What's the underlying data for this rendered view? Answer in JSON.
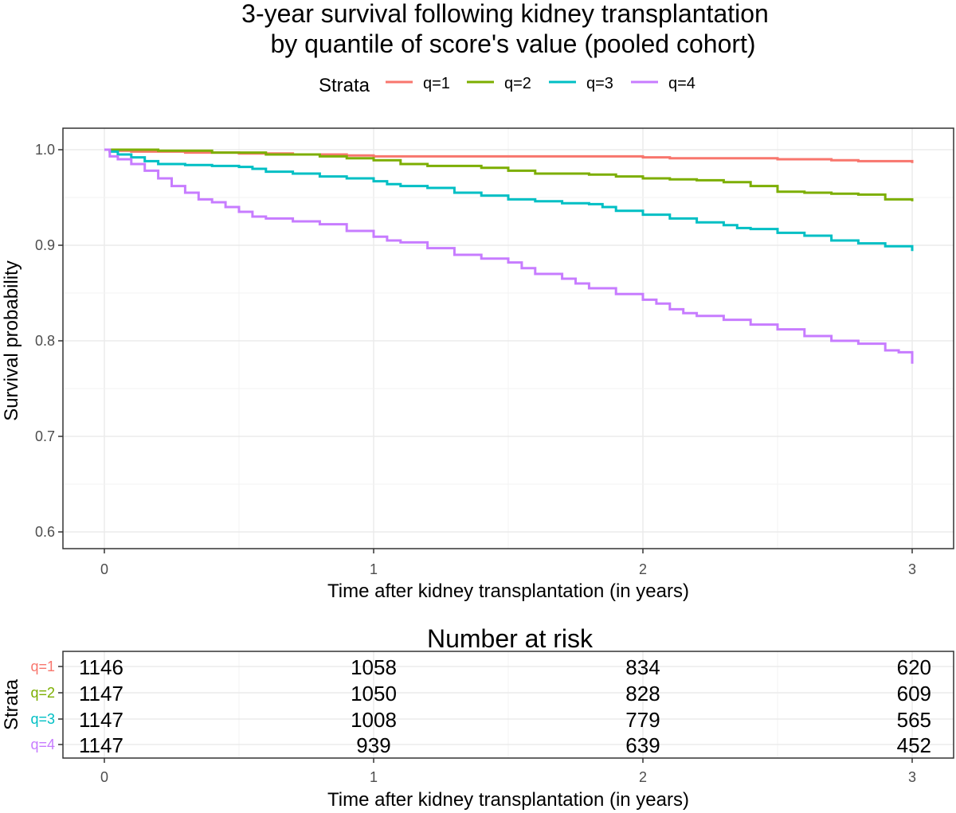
{
  "chart_data": [
    {
      "type": "line",
      "title": "3-year survival following kidney transplantation",
      "subtitle": "by quantile of score's value (pooled cohort)",
      "legend_title": "Strata",
      "legend_position": "top",
      "xlabel": "Time after kidney transplantation (in years)",
      "ylabel": "Survival probability",
      "xlim": [
        0,
        3
      ],
      "ylim": [
        0.58,
        1.02
      ],
      "x_ticks": [
        "0",
        "1",
        "2",
        "3"
      ],
      "y_ticks": [
        "0.6",
        "0.7",
        "0.8",
        "0.9",
        "1.0"
      ],
      "grid": true,
      "step": true,
      "series": [
        {
          "name": "q=1",
          "color": "#F8766D",
          "x": [
            0,
            0.02,
            0.1,
            0.3,
            0.5,
            0.7,
            0.9,
            1.0,
            1.3,
            1.6,
            2.0,
            2.1,
            2.3,
            2.5,
            2.7,
            2.8,
            3.0
          ],
          "y": [
            1.0,
            0.999,
            0.998,
            0.997,
            0.996,
            0.995,
            0.994,
            0.993,
            0.993,
            0.993,
            0.992,
            0.991,
            0.991,
            0.99,
            0.989,
            0.988,
            0.986
          ]
        },
        {
          "name": "q=2",
          "color": "#7CAE00",
          "x": [
            0,
            0.05,
            0.2,
            0.4,
            0.6,
            0.8,
            0.9,
            1.0,
            1.1,
            1.2,
            1.4,
            1.5,
            1.6,
            1.7,
            1.8,
            1.9,
            2.0,
            2.1,
            2.2,
            2.3,
            2.4,
            2.5,
            2.6,
            2.7,
            2.8,
            2.9,
            3.0
          ],
          "y": [
            1.0,
            1.0,
            0.999,
            0.997,
            0.995,
            0.993,
            0.991,
            0.989,
            0.985,
            0.983,
            0.981,
            0.978,
            0.975,
            0.975,
            0.974,
            0.972,
            0.97,
            0.969,
            0.968,
            0.966,
            0.962,
            0.956,
            0.955,
            0.954,
            0.953,
            0.948,
            0.946
          ]
        },
        {
          "name": "q=3",
          "color": "#00BFC4",
          "x": [
            0,
            0.02,
            0.05,
            0.1,
            0.15,
            0.2,
            0.3,
            0.4,
            0.5,
            0.55,
            0.6,
            0.7,
            0.8,
            0.9,
            1.0,
            1.05,
            1.1,
            1.2,
            1.3,
            1.4,
            1.5,
            1.6,
            1.7,
            1.8,
            1.85,
            1.9,
            2.0,
            2.1,
            2.2,
            2.3,
            2.35,
            2.4,
            2.5,
            2.6,
            2.7,
            2.8,
            2.9,
            3.0
          ],
          "y": [
            1.0,
            0.998,
            0.995,
            0.992,
            0.988,
            0.985,
            0.984,
            0.983,
            0.982,
            0.98,
            0.977,
            0.975,
            0.972,
            0.97,
            0.967,
            0.964,
            0.962,
            0.96,
            0.955,
            0.952,
            0.948,
            0.946,
            0.944,
            0.943,
            0.94,
            0.936,
            0.932,
            0.928,
            0.924,
            0.921,
            0.918,
            0.917,
            0.913,
            0.91,
            0.905,
            0.902,
            0.899,
            0.894
          ]
        },
        {
          "name": "q=4",
          "color": "#C77CFF",
          "x": [
            0,
            0.02,
            0.05,
            0.1,
            0.15,
            0.2,
            0.25,
            0.3,
            0.35,
            0.4,
            0.45,
            0.5,
            0.55,
            0.6,
            0.7,
            0.8,
            0.9,
            1.0,
            1.05,
            1.1,
            1.2,
            1.3,
            1.4,
            1.5,
            1.55,
            1.6,
            1.7,
            1.75,
            1.8,
            1.9,
            2.0,
            2.05,
            2.1,
            2.15,
            2.2,
            2.3,
            2.4,
            2.5,
            2.6,
            2.7,
            2.8,
            2.9,
            2.95,
            3.0
          ],
          "y": [
            1.0,
            0.993,
            0.99,
            0.985,
            0.978,
            0.97,
            0.962,
            0.955,
            0.948,
            0.945,
            0.94,
            0.935,
            0.93,
            0.928,
            0.925,
            0.922,
            0.915,
            0.909,
            0.905,
            0.903,
            0.897,
            0.89,
            0.886,
            0.882,
            0.876,
            0.87,
            0.865,
            0.86,
            0.855,
            0.849,
            0.843,
            0.839,
            0.833,
            0.829,
            0.826,
            0.822,
            0.817,
            0.812,
            0.805,
            0.8,
            0.797,
            0.79,
            0.788,
            0.776
          ]
        }
      ]
    },
    {
      "type": "table",
      "title": "Number at risk",
      "ylabel": "Strata",
      "xlabel": "Time after kidney transplantation (in years)",
      "x_ticks": [
        "0",
        "1",
        "2",
        "3"
      ],
      "rows": [
        {
          "label": "q=1",
          "color": "#F8766D",
          "values": [
            "1146",
            "1058",
            "834",
            "620"
          ]
        },
        {
          "label": "q=2",
          "color": "#7CAE00",
          "values": [
            "1147",
            "1050",
            "828",
            "609"
          ]
        },
        {
          "label": "q=3",
          "color": "#00BFC4",
          "values": [
            "1147",
            "1008",
            "779",
            "565"
          ]
        },
        {
          "label": "q=4",
          "color": "#C77CFF",
          "values": [
            "1147",
            "939",
            "639",
            "452"
          ]
        }
      ]
    }
  ]
}
